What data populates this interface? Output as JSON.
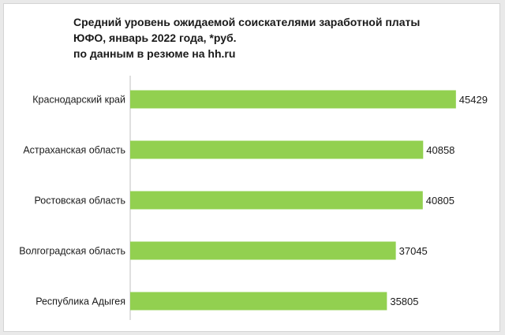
{
  "chart_data": {
    "type": "bar",
    "orientation": "horizontal",
    "title_lines": [
      "Средний уровень ожидаемой соискателями заработной платы",
      "ЮФО, январь 2022 года, *руб.",
      "по данным в резюме на hh.ru"
    ],
    "categories": [
      "Краснодарский край",
      "Астраханская область",
      "Ростовская область",
      "Волгоградская область",
      "Республика Адыгея"
    ],
    "values": [
      45429,
      40858,
      40805,
      37045,
      35805
    ],
    "xlim": [
      0,
      46000
    ],
    "grid": false,
    "legend": "none",
    "bar_color": "#92d050"
  }
}
